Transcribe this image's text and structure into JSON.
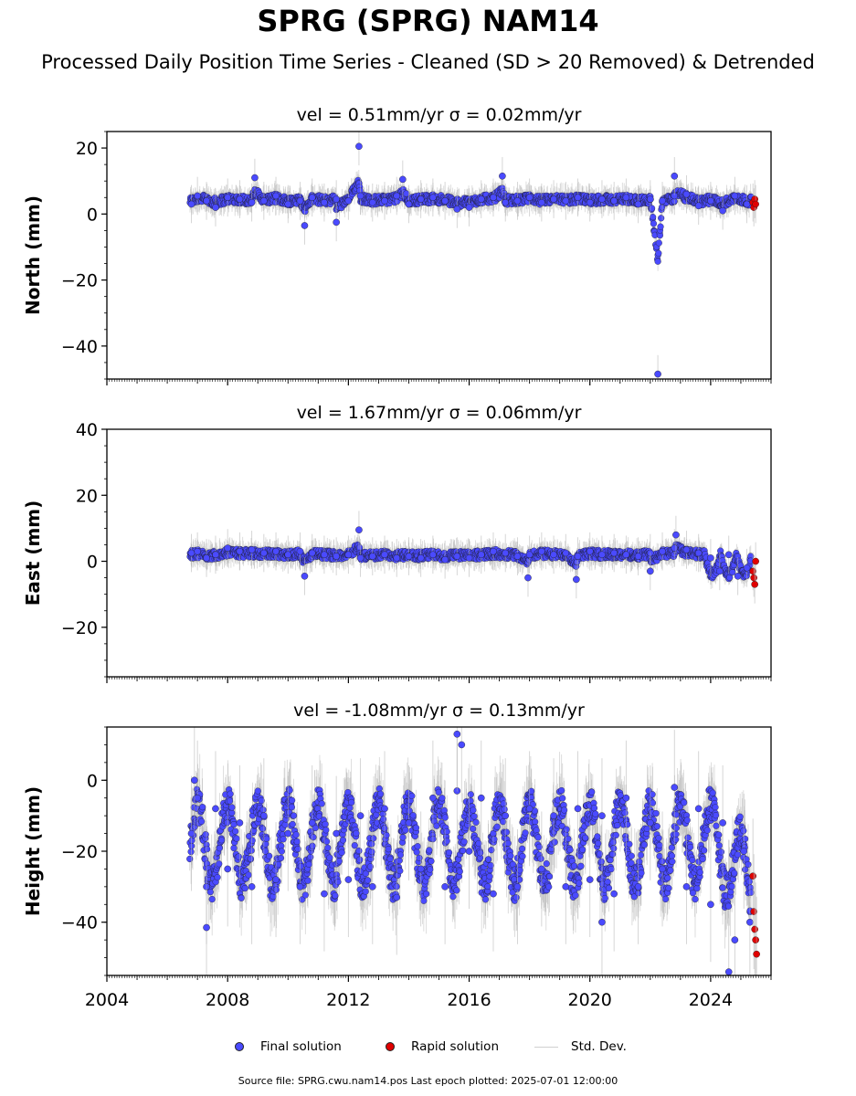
{
  "figure": {
    "title": "SPRG (SPRG) NAM14",
    "subtitle": "Processed Daily Position Time Series - Cleaned (SD > 20 Removed) & Detrended",
    "source": "Source file: SPRG.cwu.nam14.pos  Last epoch plotted: 2025-07-01 12:00:00"
  },
  "legend": {
    "final_label": "Final solution",
    "rapid_label": "Rapid solution",
    "sd_label": "Std. Dev."
  },
  "colors": {
    "final": "#4a4aff",
    "rapid": "#e00000",
    "marker_edge": "#1a1a1a",
    "sd": "#b3b3b3"
  },
  "chart_data": [
    {
      "type": "scatter",
      "panel": "north",
      "title": "vel = 0.51mm/yr   σ = 0.02mm/yr",
      "ylabel": "North (mm)",
      "xlim": [
        2004.0,
        2026.0
      ],
      "ylim": [
        -50,
        25
      ],
      "yticks": [
        -40,
        -20,
        0,
        20
      ],
      "xticks": [
        2004,
        2008,
        2012,
        2016,
        2020,
        2024
      ],
      "xtick_labels": [
        "",
        "",
        "",
        "",
        "",
        ""
      ],
      "series": [
        {
          "name": "Final solution",
          "x": [
            2006.8,
            2007.0,
            2007.3,
            2007.6,
            2008.0,
            2008.4,
            2008.8,
            2009.2,
            2009.6,
            2010.0,
            2010.4,
            2010.8,
            2011.2,
            2011.6,
            2012.0,
            2012.4,
            2012.8,
            2013.2,
            2013.6,
            2014.0,
            2014.4,
            2014.8,
            2015.2,
            2015.6,
            2016.0,
            2016.4,
            2016.8,
            2017.2,
            2017.6,
            2018.0,
            2018.4,
            2018.8,
            2019.2,
            2019.6,
            2020.0,
            2020.4,
            2020.8,
            2021.2,
            2021.6,
            2022.0,
            2022.4,
            2022.8,
            2023.2,
            2023.6,
            2024.0,
            2024.4,
            2024.8,
            2025.2,
            2012.35,
            2010.55,
            2011.6,
            2008.9,
            2013.8,
            2017.1,
            2022.8,
            2022.25
          ],
          "y": [
            3.0,
            5.5,
            4.0,
            2.0,
            5.0,
            4.5,
            3.5,
            4.0,
            5.5,
            3.0,
            4.0,
            5.0,
            3.5,
            4.5,
            4.0,
            5.5,
            3.5,
            4.0,
            5.5,
            3.0,
            4.5,
            5.0,
            4.0,
            1.5,
            2.0,
            4.5,
            5.0,
            3.5,
            4.0,
            5.0,
            3.5,
            4.5,
            4.0,
            5.0,
            3.5,
            4.5,
            4.0,
            5.0,
            3.0,
            4.5,
            4.0,
            5.5,
            6.0,
            2.5,
            4.0,
            1.0,
            5.5,
            3.0,
            20.5,
            -3.5,
            -2.5,
            11.0,
            10.5,
            11.5,
            11.5,
            -48.5
          ]
        },
        {
          "name": "Rapid solution",
          "x": [
            2025.4,
            2025.43,
            2025.46,
            2025.49
          ],
          "y": [
            3.5,
            2.0,
            4.5,
            3.0
          ]
        }
      ]
    },
    {
      "type": "scatter",
      "panel": "east",
      "title": "vel = 1.67mm/yr   σ = 0.06mm/yr",
      "ylabel": "East (mm)",
      "xlim": [
        2004.0,
        2026.0
      ],
      "ylim": [
        -35,
        40
      ],
      "yticks": [
        -20,
        0,
        20,
        40
      ],
      "xticks": [
        2004,
        2008,
        2012,
        2016,
        2020,
        2024
      ],
      "xtick_labels": [
        "",
        "",
        "",
        "",
        "",
        ""
      ],
      "series": [
        {
          "name": "Final solution",
          "x": [
            2006.8,
            2007.0,
            2007.3,
            2007.6,
            2008.0,
            2008.4,
            2008.8,
            2009.2,
            2009.6,
            2010.0,
            2010.4,
            2010.8,
            2011.2,
            2011.6,
            2012.0,
            2012.4,
            2012.8,
            2013.2,
            2013.6,
            2014.0,
            2014.4,
            2014.8,
            2015.2,
            2015.6,
            2016.0,
            2016.4,
            2016.8,
            2017.2,
            2017.6,
            2018.0,
            2018.4,
            2018.8,
            2019.2,
            2019.6,
            2020.0,
            2020.4,
            2020.8,
            2021.2,
            2021.6,
            2022.0,
            2022.4,
            2022.8,
            2023.2,
            2023.6,
            2024.0,
            2024.3,
            2024.6,
            2024.9,
            2025.2,
            2012.35,
            2010.55,
            2017.95,
            2019.55,
            2022.0,
            2022.85
          ],
          "y": [
            2.5,
            3.0,
            1.0,
            2.0,
            4.0,
            3.0,
            3.5,
            2.5,
            3.0,
            2.0,
            3.0,
            2.5,
            2.0,
            1.5,
            2.0,
            1.0,
            1.5,
            2.0,
            1.0,
            1.5,
            1.0,
            2.0,
            0.5,
            1.5,
            1.0,
            2.0,
            3.0,
            2.5,
            1.5,
            2.0,
            3.0,
            2.0,
            2.5,
            1.5,
            3.0,
            2.0,
            2.5,
            2.0,
            1.5,
            2.5,
            3.0,
            4.0,
            3.5,
            2.5,
            1.0,
            -3.0,
            2.0,
            -4.5,
            -2.0,
            9.5,
            -4.5,
            -5.0,
            -5.5,
            -3.0,
            8.0
          ]
        },
        {
          "name": "Rapid solution",
          "x": [
            2025.4,
            2025.43,
            2025.46,
            2025.49
          ],
          "y": [
            -3.0,
            -5.0,
            -7.0,
            0.0
          ]
        }
      ]
    },
    {
      "type": "scatter",
      "panel": "height",
      "title": "vel = -1.08mm/yr   σ = 0.13mm/yr",
      "ylabel": "Height (mm)",
      "xlim": [
        2004.0,
        2026.0
      ],
      "ylim": [
        -55,
        15
      ],
      "yticks": [
        -40,
        -20,
        0
      ],
      "xticks": [
        2004,
        2008,
        2012,
        2016,
        2020,
        2024
      ],
      "xtick_labels": [
        "2004",
        "2008",
        "2012",
        "2016",
        "2020",
        "2024"
      ],
      "series": [
        {
          "name": "Final solution",
          "x": [
            2006.8,
            2007.0,
            2007.3,
            2007.6,
            2008.0,
            2008.4,
            2008.8,
            2009.2,
            2009.6,
            2010.0,
            2010.4,
            2010.8,
            2011.2,
            2011.6,
            2012.0,
            2012.4,
            2012.8,
            2013.2,
            2013.6,
            2014.0,
            2014.4,
            2014.8,
            2015.2,
            2015.6,
            2016.0,
            2016.4,
            2016.8,
            2017.2,
            2017.6,
            2018.0,
            2018.4,
            2018.8,
            2019.2,
            2019.6,
            2020.0,
            2020.4,
            2020.8,
            2021.2,
            2021.6,
            2022.0,
            2022.4,
            2022.8,
            2023.2,
            2023.6,
            2024.0,
            2024.4,
            2024.8,
            2025.1,
            2025.3,
            2006.9,
            2007.3,
            2015.6,
            2015.75,
            2020.4,
            2024.6
          ],
          "y": [
            -15.0,
            -5.0,
            -30.0,
            -8.0,
            -25.0,
            -12.0,
            -30.0,
            -10.0,
            -28.0,
            -15.0,
            -30.0,
            -12.0,
            -32.0,
            -15.0,
            -28.0,
            -10.0,
            -30.0,
            -8.0,
            -33.0,
            -12.0,
            -25.0,
            -5.0,
            -30.0,
            -3.0,
            -20.0,
            -5.0,
            -32.0,
            -10.0,
            -30.0,
            -8.0,
            -25.0,
            -10.0,
            -30.0,
            -8.0,
            -28.0,
            -10.0,
            -32.0,
            -5.0,
            -30.0,
            -12.0,
            -25.0,
            -2.0,
            -30.0,
            -8.0,
            -35.0,
            -12.0,
            -45.0,
            -20.0,
            -40.0,
            0.0,
            -41.5,
            13.0,
            10.0,
            -40.0,
            -54.0
          ]
        },
        {
          "name": "Rapid solution",
          "x": [
            2025.4,
            2025.43,
            2025.46,
            2025.49,
            2025.52
          ],
          "y": [
            -27.0,
            -37.0,
            -42.0,
            -45.0,
            -49.0
          ]
        }
      ]
    }
  ]
}
